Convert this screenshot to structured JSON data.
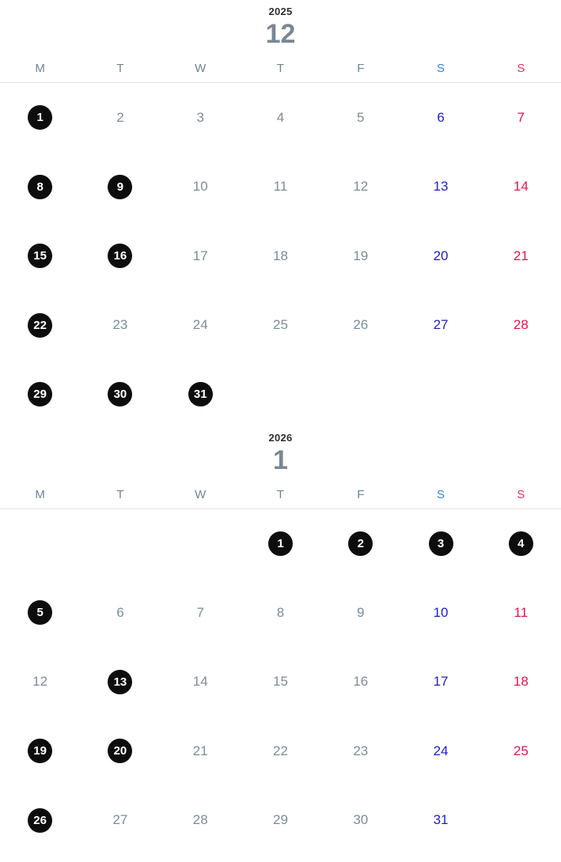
{
  "colors": {
    "month_number": "#7a8894",
    "year_label": "#2f2f2f",
    "weekday_header": "#6e8498",
    "saturday_header": "#2e86de",
    "sunday_header": "#e5305e",
    "plain_day": "#7d8c9a",
    "saturday_day": "#1e1ecb",
    "sunday_day": "#e2164e",
    "selected_badge_bg": "#0d0d0d",
    "selected_badge_text": "#ffffff",
    "divider_line": "#e4e8e8"
  },
  "months": [
    {
      "year": "2025",
      "month_number": "12",
      "weekday_headers": [
        "M",
        "T",
        "W",
        "T",
        "F",
        "S",
        "S"
      ],
      "weeks": [
        [
          {
            "day": "1",
            "style": "badge"
          },
          {
            "day": "2",
            "style": "plain"
          },
          {
            "day": "3",
            "style": "plain"
          },
          {
            "day": "4",
            "style": "plain"
          },
          {
            "day": "5",
            "style": "plain"
          },
          {
            "day": "6",
            "style": "sat"
          },
          {
            "day": "7",
            "style": "sun"
          }
        ],
        [
          {
            "day": "8",
            "style": "badge"
          },
          {
            "day": "9",
            "style": "badge"
          },
          {
            "day": "10",
            "style": "plain"
          },
          {
            "day": "11",
            "style": "plain"
          },
          {
            "day": "12",
            "style": "plain"
          },
          {
            "day": "13",
            "style": "sat"
          },
          {
            "day": "14",
            "style": "sun"
          }
        ],
        [
          {
            "day": "15",
            "style": "badge"
          },
          {
            "day": "16",
            "style": "badge"
          },
          {
            "day": "17",
            "style": "plain"
          },
          {
            "day": "18",
            "style": "plain"
          },
          {
            "day": "19",
            "style": "plain"
          },
          {
            "day": "20",
            "style": "sat"
          },
          {
            "day": "21",
            "style": "sun"
          }
        ],
        [
          {
            "day": "22",
            "style": "badge"
          },
          {
            "day": "23",
            "style": "plain"
          },
          {
            "day": "24",
            "style": "plain"
          },
          {
            "day": "25",
            "style": "plain"
          },
          {
            "day": "26",
            "style": "plain"
          },
          {
            "day": "27",
            "style": "sat"
          },
          {
            "day": "28",
            "style": "sun"
          }
        ],
        [
          {
            "day": "29",
            "style": "badge"
          },
          {
            "day": "30",
            "style": "badge"
          },
          {
            "day": "31",
            "style": "badge"
          },
          {
            "day": "",
            "style": "empty"
          },
          {
            "day": "",
            "style": "empty"
          },
          {
            "day": "",
            "style": "empty"
          },
          {
            "day": "",
            "style": "empty"
          }
        ]
      ]
    },
    {
      "year": "2026",
      "month_number": "1",
      "weekday_headers": [
        "M",
        "T",
        "W",
        "T",
        "F",
        "S",
        "S"
      ],
      "weeks": [
        [
          {
            "day": "",
            "style": "empty"
          },
          {
            "day": "",
            "style": "empty"
          },
          {
            "day": "",
            "style": "empty"
          },
          {
            "day": "1",
            "style": "badge"
          },
          {
            "day": "2",
            "style": "badge"
          },
          {
            "day": "3",
            "style": "badge"
          },
          {
            "day": "4",
            "style": "badge"
          }
        ],
        [
          {
            "day": "5",
            "style": "badge"
          },
          {
            "day": "6",
            "style": "plain"
          },
          {
            "day": "7",
            "style": "plain"
          },
          {
            "day": "8",
            "style": "plain"
          },
          {
            "day": "9",
            "style": "plain"
          },
          {
            "day": "10",
            "style": "sat"
          },
          {
            "day": "11",
            "style": "sun"
          }
        ],
        [
          {
            "day": "12",
            "style": "plain"
          },
          {
            "day": "13",
            "style": "badge"
          },
          {
            "day": "14",
            "style": "plain"
          },
          {
            "day": "15",
            "style": "plain"
          },
          {
            "day": "16",
            "style": "plain"
          },
          {
            "day": "17",
            "style": "sat"
          },
          {
            "day": "18",
            "style": "sun"
          }
        ],
        [
          {
            "day": "19",
            "style": "badge"
          },
          {
            "day": "20",
            "style": "badge"
          },
          {
            "day": "21",
            "style": "plain"
          },
          {
            "day": "22",
            "style": "plain"
          },
          {
            "day": "23",
            "style": "plain"
          },
          {
            "day": "24",
            "style": "sat"
          },
          {
            "day": "25",
            "style": "sun"
          }
        ],
        [
          {
            "day": "26",
            "style": "badge"
          },
          {
            "day": "27",
            "style": "plain"
          },
          {
            "day": "28",
            "style": "plain"
          },
          {
            "day": "29",
            "style": "plain"
          },
          {
            "day": "30",
            "style": "plain"
          },
          {
            "day": "31",
            "style": "sat"
          },
          {
            "day": "",
            "style": "empty"
          }
        ]
      ]
    }
  ]
}
